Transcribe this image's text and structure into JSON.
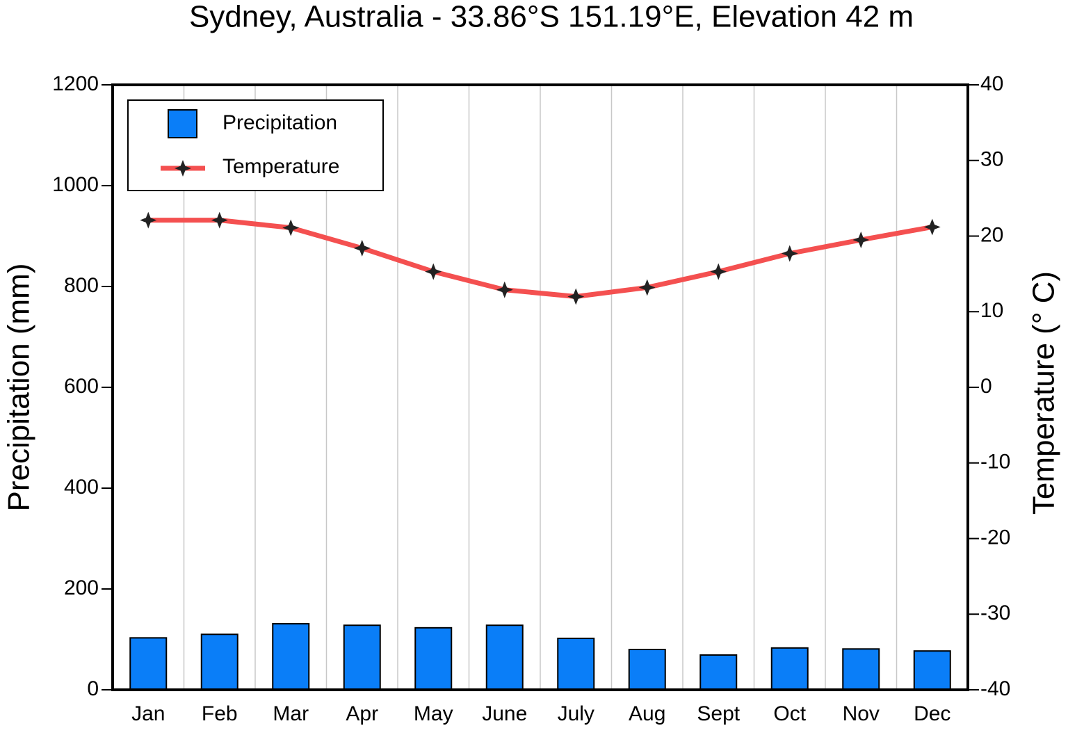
{
  "chart_data": {
    "type": "bar-line",
    "title": "Sydney, Australia - 33.86°S 151.19°E, Elevation 42 m",
    "y_label": "Precipitation (mm)",
    "y2_label": "Temperature (° C)",
    "categories": [
      "Jan",
      "Feb",
      "Mar",
      "Apr",
      "May",
      "June",
      "July",
      "Aug",
      "Sept",
      "Oct",
      "Nov",
      "Dec"
    ],
    "series": [
      {
        "name": "Precipitation",
        "type": "bar",
        "color": "#0a7ef8",
        "values": [
          103,
          110,
          131,
          128,
          123,
          128,
          102,
          80,
          69,
          83,
          81,
          77
        ]
      },
      {
        "name": "Temperature",
        "type": "line",
        "axis": "y2",
        "color": "#f45050",
        "values": [
          22.1,
          22.1,
          21.1,
          18.4,
          15.3,
          12.9,
          12.0,
          13.2,
          15.3,
          17.7,
          19.5,
          21.2
        ]
      }
    ],
    "ylim": [
      0,
      1200
    ],
    "yticks": [
      0,
      200,
      400,
      600,
      800,
      1000,
      1200
    ],
    "y2lim": [
      -40,
      40
    ],
    "y2ticks": [
      -40,
      -30,
      -20,
      -10,
      0,
      10,
      20,
      30,
      40
    ],
    "legend": "upper left"
  }
}
